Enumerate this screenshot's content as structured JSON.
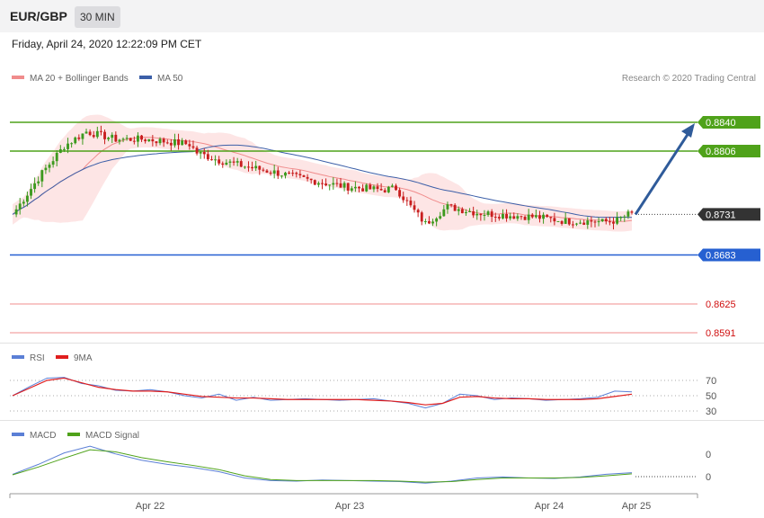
{
  "header": {
    "symbol": "EUR/GBP",
    "timeframe": "30 MIN",
    "datetime": "Friday, April 24, 2020 12:22:09 PM CET"
  },
  "legend": {
    "ma20_label": "MA 20 + Bollinger Bands",
    "ma50_label": "MA 50",
    "copyright": "Research © 2020 Trading Central",
    "rsi_label": "RSI",
    "rsi_ma_label": "9MA",
    "macd_label": "MACD",
    "macd_signal_label": "MACD Signal"
  },
  "colors": {
    "resistance": "#4fa21a",
    "support": "#2660d1",
    "current": "#333333",
    "minor_support": "#f08c8c",
    "ma20": "#f08c8c",
    "ma50": "#3c5fa8",
    "bollinger_fill": "#fde0e0",
    "candle_up": "#3c9a1e",
    "candle_down": "#c81e1e",
    "rsi": "#5b7fd6",
    "rsi_ma": "#e01e1e",
    "macd": "#5b7fd6",
    "macd_signal": "#4fa21a",
    "arrow": "#2f5b9a"
  },
  "chart_data": [
    {
      "type": "candlestick",
      "pair": "EUR/GBP",
      "interval": "30 MIN",
      "x_ticks": [
        "Apr 22",
        "Apr 23",
        "Apr 24",
        "Apr 25"
      ],
      "ylim": [
        0.8585,
        0.8855
      ],
      "levels": [
        {
          "value": 0.884,
          "label": "0.8840",
          "kind": "resistance"
        },
        {
          "value": 0.8806,
          "label": "0.8806",
          "kind": "resistance"
        },
        {
          "value": 0.8731,
          "label": "0.8731",
          "kind": "current"
        },
        {
          "value": 0.8683,
          "label": "0.8683",
          "kind": "support"
        },
        {
          "value": 0.8625,
          "label": "0.8625",
          "kind": "minor_support"
        },
        {
          "value": 0.8591,
          "label": "0.8591",
          "kind": "minor_support"
        }
      ],
      "close_path": [
        [
          0,
          0.8731
        ],
        [
          8,
          0.878
        ],
        [
          14,
          0.8812
        ],
        [
          20,
          0.8829
        ],
        [
          28,
          0.882
        ],
        [
          36,
          0.882
        ],
        [
          42,
          0.8817
        ],
        [
          48,
          0.8814
        ],
        [
          50,
          0.8804
        ],
        [
          56,
          0.8795
        ],
        [
          64,
          0.8787
        ],
        [
          72,
          0.878
        ],
        [
          80,
          0.8772
        ],
        [
          90,
          0.8764
        ],
        [
          100,
          0.876
        ],
        [
          104,
          0.8762
        ],
        [
          108,
          0.874
        ],
        [
          112,
          0.872
        ],
        [
          118,
          0.874
        ],
        [
          126,
          0.8733
        ],
        [
          134,
          0.873
        ],
        [
          142,
          0.8728
        ],
        [
          150,
          0.8723
        ],
        [
          158,
          0.8723
        ],
        [
          160,
          0.8722
        ],
        [
          164,
          0.8724
        ],
        [
          168,
          0.8733
        ]
      ],
      "forecast_arrow": {
        "from": 0.8731,
        "to": 0.884
      },
      "series": [
        {
          "name": "MA 20 + Bollinger Bands"
        },
        {
          "name": "MA 50"
        }
      ]
    },
    {
      "type": "line",
      "panel": "RSI",
      "y_ticks": [
        70,
        50,
        30
      ],
      "ylim": [
        20,
        80
      ],
      "series": [
        {
          "name": "RSI",
          "values": [
            50,
            62,
            73,
            74,
            66,
            63,
            57,
            56,
            58,
            55,
            50,
            47,
            52,
            44,
            48,
            44,
            45,
            46,
            45,
            44,
            45,
            46,
            43,
            40,
            34,
            40,
            52,
            50,
            45,
            47,
            46,
            44,
            45,
            46,
            48,
            56,
            55
          ]
        },
        {
          "name": "9MA",
          "values": [
            50,
            60,
            70,
            73,
            67,
            61,
            58,
            56,
            56,
            55,
            52,
            49,
            48,
            47,
            47,
            46,
            45,
            45,
            45,
            45,
            45,
            44,
            43,
            41,
            38,
            40,
            48,
            49,
            47,
            46,
            46,
            45,
            45,
            45,
            46,
            49,
            52
          ]
        }
      ]
    },
    {
      "type": "line",
      "panel": "MACD",
      "y_ticks": [
        0,
        0
      ],
      "series": [
        {
          "name": "MACD",
          "values": [
            0.1,
            2.0,
            4.2,
            5.5,
            4.0,
            2.8,
            2.0,
            1.4,
            0.6,
            -0.6,
            -1.1,
            -1.2,
            -1.0,
            -1.1,
            -1.2,
            -1.3,
            -1.6,
            -1.2,
            -0.6,
            -0.4,
            -0.6,
            -0.7,
            -0.4,
            0.1,
            0.4
          ]
        },
        {
          "name": "MACD Signal",
          "values": [
            0.0,
            1.5,
            3.2,
            4.8,
            4.4,
            3.3,
            2.5,
            1.8,
            1.0,
            -0.2,
            -0.9,
            -1.1,
            -1.1,
            -1.1,
            -1.1,
            -1.2,
            -1.4,
            -1.3,
            -0.9,
            -0.6,
            -0.6,
            -0.6,
            -0.5,
            -0.2,
            0.2
          ]
        }
      ]
    }
  ]
}
